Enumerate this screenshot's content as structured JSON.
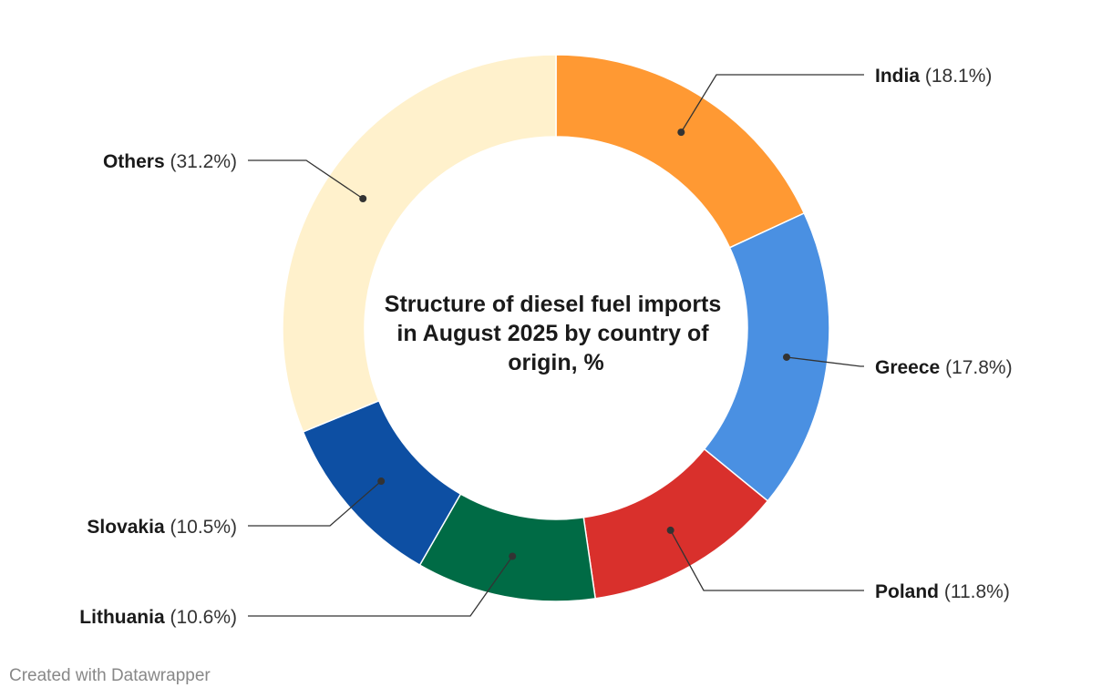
{
  "chart_data": {
    "type": "pie",
    "variant": "donut",
    "title_lines": [
      "Structure of diesel fuel imports",
      "in August 2025 by country of",
      "origin, %"
    ],
    "slices": [
      {
        "label": "India",
        "value": 18.1,
        "display": "(18.1%)",
        "color": "#FF9933",
        "side": "right"
      },
      {
        "label": "Greece",
        "value": 17.8,
        "display": "(17.8%)",
        "color": "#4A90E2",
        "side": "right"
      },
      {
        "label": "Poland",
        "value": 11.8,
        "display": "(11.8%)",
        "color": "#D9302C",
        "side": "right"
      },
      {
        "label": "Lithuania",
        "value": 10.6,
        "display": "(10.6%)",
        "color": "#006B45",
        "side": "left"
      },
      {
        "label": "Slovakia",
        "value": 10.5,
        "display": "(10.5%)",
        "color": "#0D4FA3",
        "side": "left"
      },
      {
        "label": "Others",
        "value": 31.2,
        "display": "(31.2%)",
        "color": "#FFF1CC",
        "side": "left"
      }
    ]
  },
  "footer": {
    "credit": "Created with Datawrapper"
  }
}
